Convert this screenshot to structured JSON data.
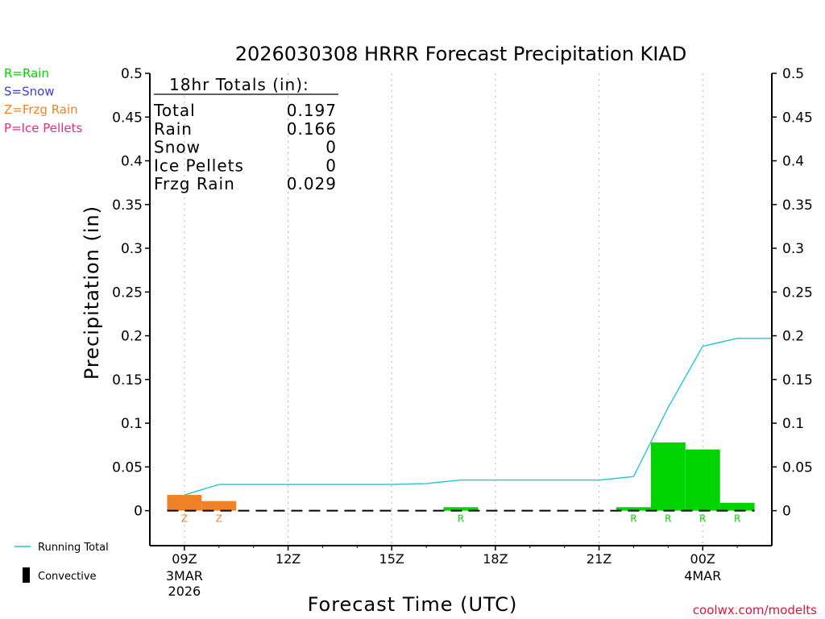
{
  "chart_data": {
    "type": "bar",
    "title": "2026030308 HRRR Forecast Precipitation KIAD",
    "xlabel": "Forecast Time (UTC)",
    "ylabel": "Precipitation (in)",
    "ylim": [
      -0.04,
      0.5
    ],
    "y_ticks": [
      0,
      0.05,
      0.1,
      0.15,
      0.2,
      0.25,
      0.3,
      0.35,
      0.4,
      0.45,
      0.5
    ],
    "y_tick_labels": [
      "0",
      "0.05",
      "0.1",
      "0.15",
      "0.2",
      "0.25",
      "0.3",
      "0.35",
      "0.4",
      "0.45",
      "0.5"
    ],
    "xlim": [
      8,
      26
    ],
    "x_ticks": [
      {
        "x": 9,
        "label": "09Z",
        "date1": "3MAR",
        "date2": "2026"
      },
      {
        "x": 12,
        "label": "12Z",
        "date1": "",
        "date2": ""
      },
      {
        "x": 15,
        "label": "15Z",
        "date1": "",
        "date2": ""
      },
      {
        "x": 18,
        "label": "18Z",
        "date1": "",
        "date2": ""
      },
      {
        "x": 21,
        "label": "21Z",
        "date1": "",
        "date2": ""
      },
      {
        "x": 24,
        "label": "00Z",
        "date1": "4MAR",
        "date2": ""
      }
    ],
    "bars": [
      {
        "hour": 9,
        "value": 0.018,
        "type": "Z"
      },
      {
        "hour": 10,
        "value": 0.011,
        "type": "Z"
      },
      {
        "hour": 17,
        "value": 0.004,
        "type": "R"
      },
      {
        "hour": 22,
        "value": 0.004,
        "type": "R"
      },
      {
        "hour": 23,
        "value": 0.078,
        "type": "R"
      },
      {
        "hour": 24,
        "value": 0.07,
        "type": "R"
      },
      {
        "hour": 25,
        "value": 0.009,
        "type": "R"
      }
    ],
    "running_total": {
      "x": [
        9,
        10,
        11,
        12,
        13,
        14,
        15,
        16,
        17,
        18,
        19,
        20,
        21,
        22,
        23,
        24,
        25,
        26
      ],
      "y": [
        0.018,
        0.03,
        0.03,
        0.03,
        0.03,
        0.03,
        0.03,
        0.031,
        0.035,
        0.035,
        0.035,
        0.035,
        0.035,
        0.039,
        0.118,
        0.188,
        0.197,
        0.197
      ]
    },
    "type_colors": {
      "R": "#00d400",
      "S": "#3c3cf0",
      "Z": "#f08228",
      "P": "#f02882"
    },
    "line_color": "#1ec8d2",
    "legend": [
      {
        "label": "R=Rain",
        "color": "#00d400"
      },
      {
        "label": "S=Snow",
        "color": "#3c3cf0"
      },
      {
        "label": "Z=Frzg Rain",
        "color": "#f08228"
      },
      {
        "label": "P=Ice Pellets",
        "color": "#f02882"
      }
    ],
    "bottom_legend": {
      "running_total": "Running Total",
      "convective": "Convective"
    },
    "totals_header": "18hr Totals (in):",
    "totals": [
      {
        "label": "Total",
        "value": "0.197"
      },
      {
        "label": "Rain",
        "value": "0.166"
      },
      {
        "label": "Snow",
        "value": "0"
      },
      {
        "label": "Ice Pellets",
        "value": "0"
      },
      {
        "label": "Frzg Rain",
        "value": "0.029"
      }
    ],
    "credit": "coolwx.com/modelts",
    "credit_color": "#dc143c"
  }
}
